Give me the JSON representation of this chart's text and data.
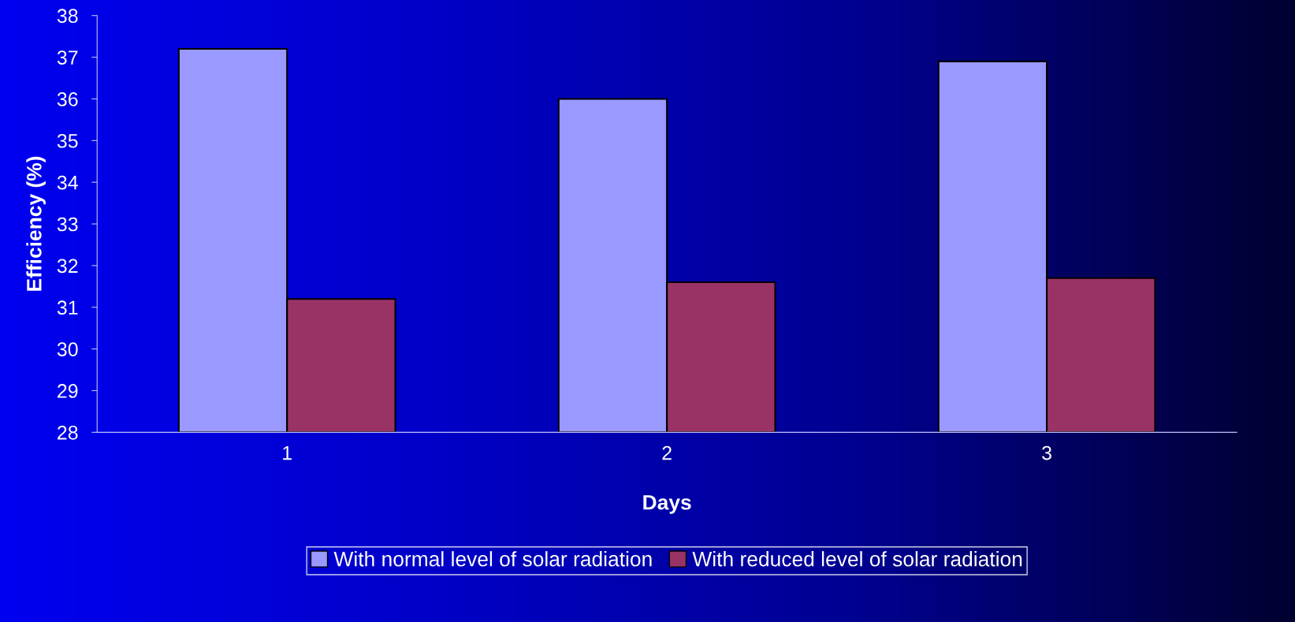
{
  "chart_data": {
    "type": "bar",
    "xlabel": "Days",
    "ylabel": "Efficiency (%)",
    "categories": [
      "1",
      "2",
      "3"
    ],
    "series": [
      {
        "name": "With normal level of solar radiation",
        "color": "#9999ff",
        "values": [
          37.2,
          36.0,
          36.9
        ]
      },
      {
        "name": "With reduced level of solar radiation",
        "color": "#993366",
        "values": [
          31.2,
          31.6,
          31.7
        ]
      }
    ],
    "ylim": [
      28,
      38
    ],
    "yticks": [
      28,
      29,
      30,
      31,
      32,
      33,
      34,
      35,
      36,
      37,
      38
    ],
    "grid": false,
    "legend": "bottom"
  }
}
